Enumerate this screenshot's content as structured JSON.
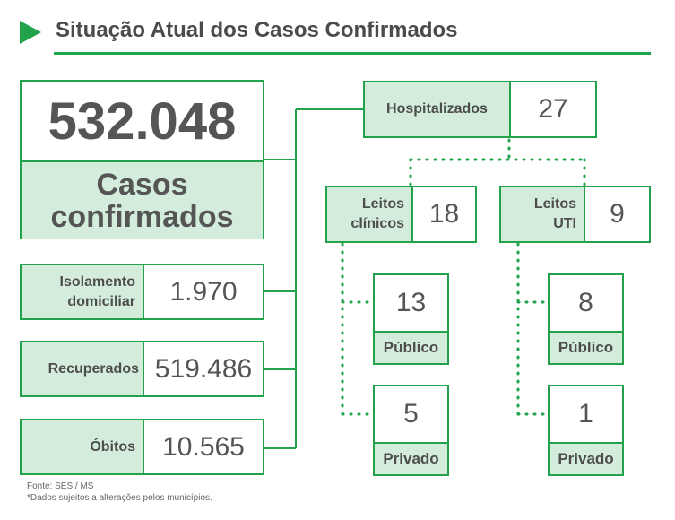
{
  "header": {
    "title": "Situação Atual dos Casos Confirmados"
  },
  "total": {
    "value": "532.048",
    "label_line1": "Casos",
    "label_line2": "confirmados"
  },
  "left_items": [
    {
      "label_line1": "Isolamento",
      "label_line2": "domiciliar",
      "value": "1.970"
    },
    {
      "label": "Recuperados",
      "value": "519.486"
    },
    {
      "label": "Óbitos",
      "value": "10.565"
    }
  ],
  "hospitalized": {
    "label": "Hospitalizados",
    "value": "27"
  },
  "clinical": {
    "label_line1": "Leitos",
    "label_line2": "clínicos",
    "value": "18",
    "public": {
      "value": "13",
      "label": "Público"
    },
    "private": {
      "value": "5",
      "label": "Privado"
    }
  },
  "uti": {
    "label_line1": "Leitos",
    "label_line2": "UTI",
    "value": "9",
    "public": {
      "value": "8",
      "label": "Público"
    },
    "private": {
      "value": "1",
      "label": "Privado"
    }
  },
  "footer": {
    "source": "Fonte: SES / MS",
    "note": "*Dados sujeitos a alterações pelos municípios."
  },
  "colors": {
    "accent": "#22a24b",
    "label_bg": "#d4ecdc",
    "text": "#4d4d4d"
  }
}
